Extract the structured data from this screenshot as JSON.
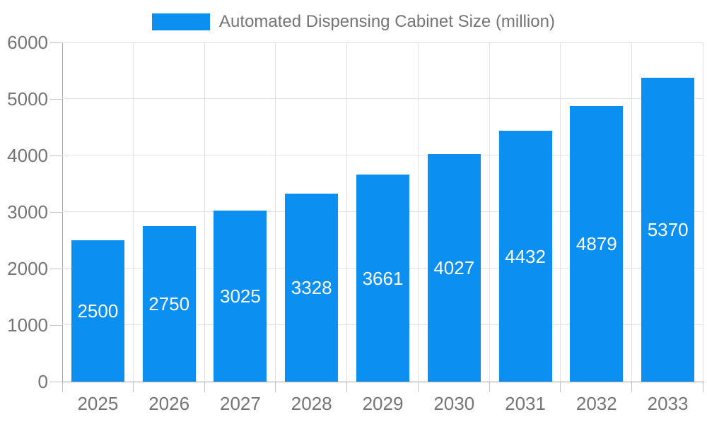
{
  "chart_data": {
    "type": "bar",
    "title": "Automated Dispensing Cabinet Size (million)",
    "legend": {
      "position": "top",
      "label": "Automated Dispensing Cabinet Size (million)"
    },
    "categories": [
      "2025",
      "2026",
      "2027",
      "2028",
      "2029",
      "2030",
      "2031",
      "2032",
      "2033"
    ],
    "series": [
      {
        "name": "Automated Dispensing Cabinet Size (million)",
        "values": [
          2500,
          2750,
          3025,
          3328,
          3661,
          4027,
          4432,
          4879,
          5370
        ]
      }
    ],
    "value_labels_shown": true,
    "xlabel": "",
    "ylabel": "",
    "ylim": [
      0,
      6000
    ],
    "y_ticks": [
      0,
      1000,
      2000,
      3000,
      4000,
      5000,
      6000
    ],
    "grid": true,
    "colors": {
      "bar": "#0b90f2",
      "value_label": "#ffffff",
      "axis_text": "#757575",
      "legend_text": "#757575",
      "gridline": "#e2e2e2",
      "tick": "#c4c4c4",
      "axis_line": "#a6a6a6",
      "background": "#ffffff"
    }
  }
}
